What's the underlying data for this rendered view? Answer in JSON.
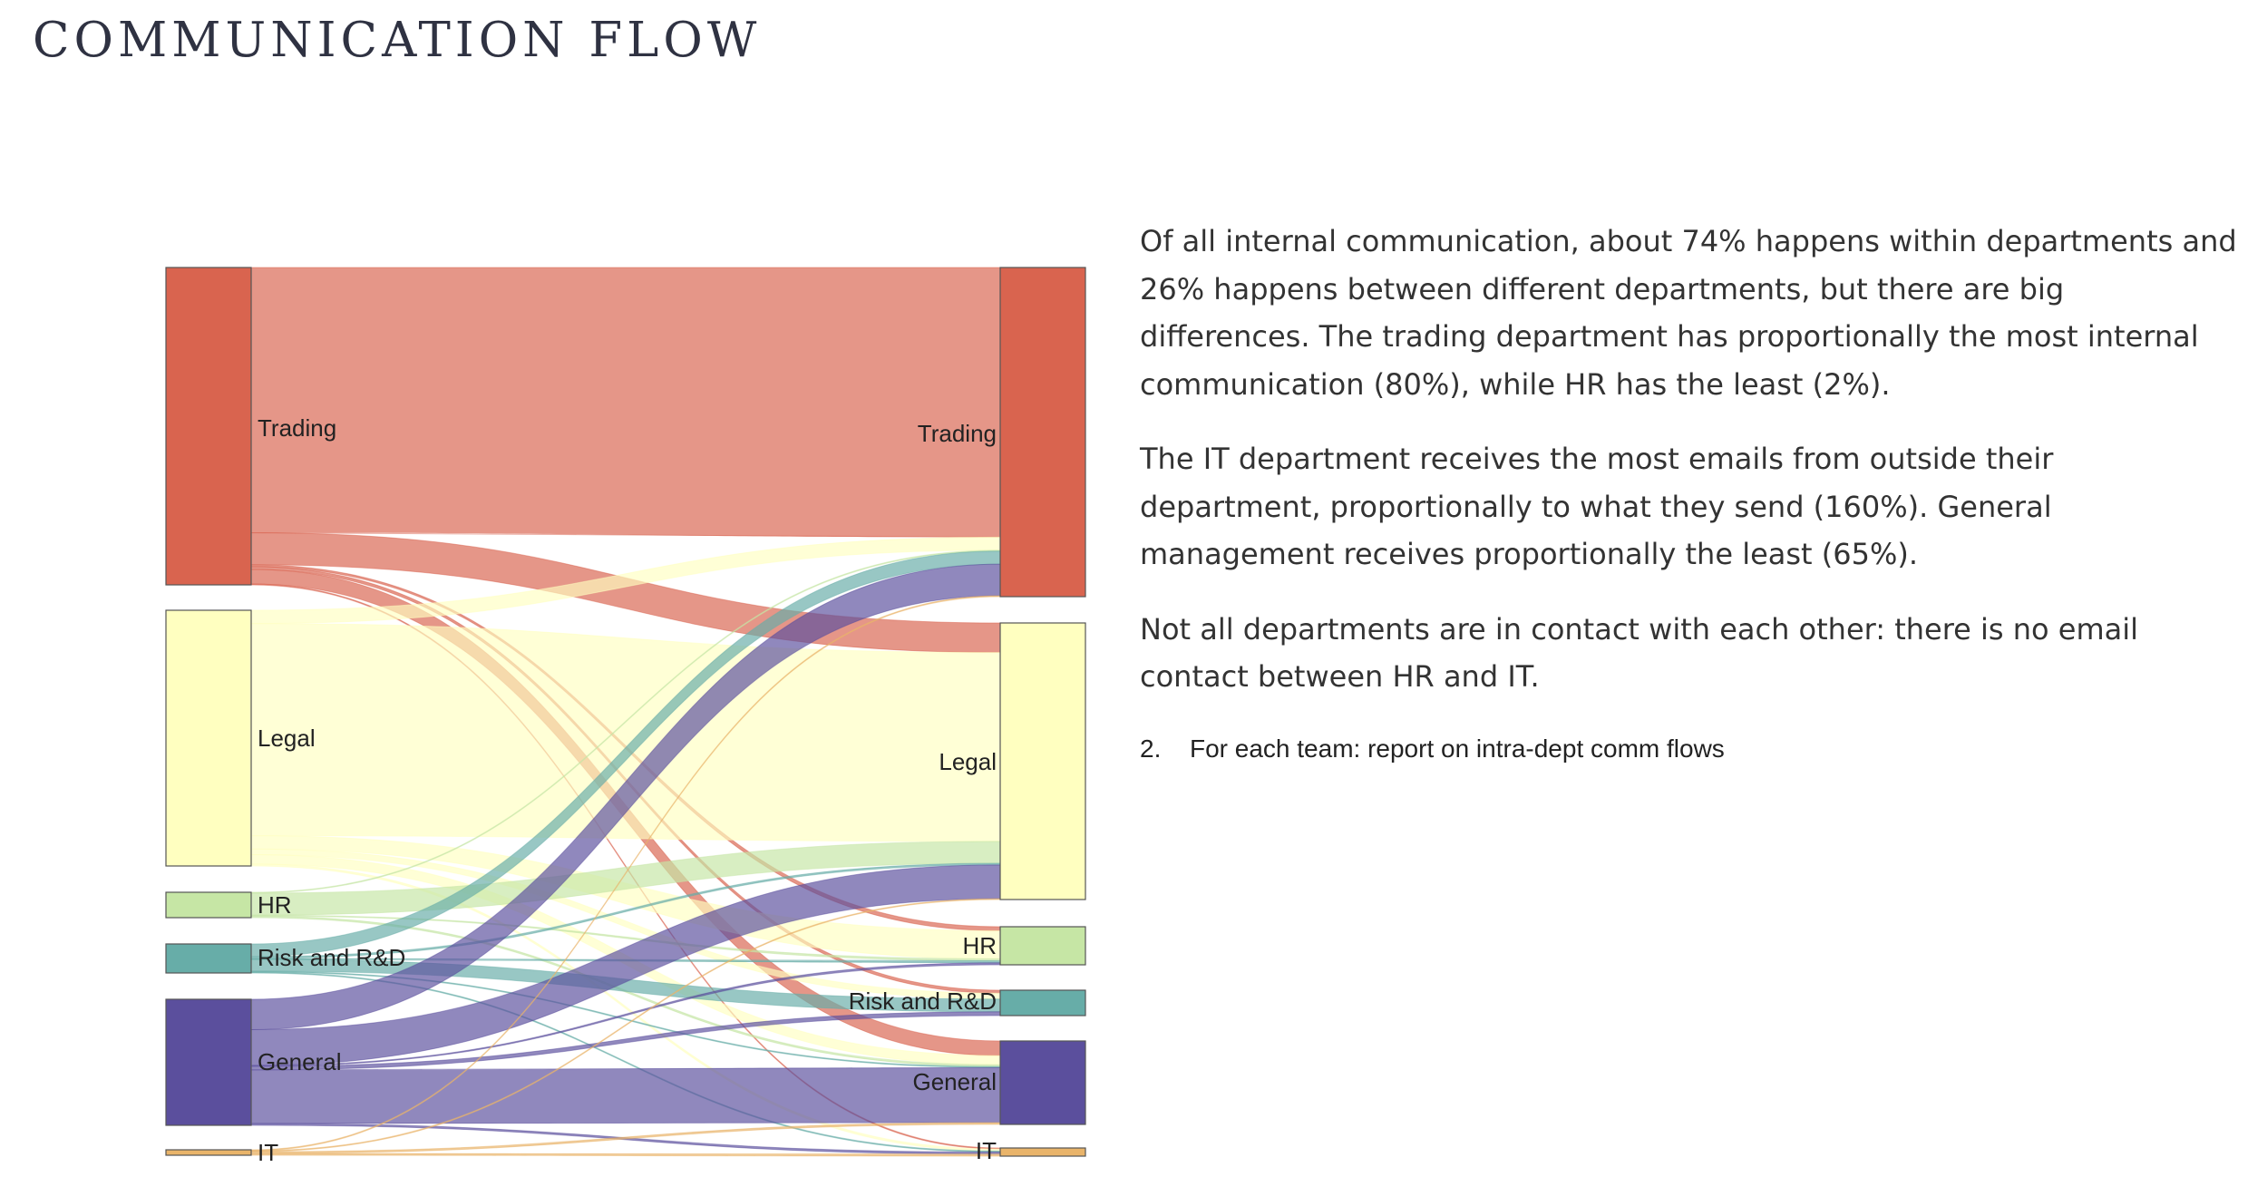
{
  "title": "COMMUNICATION FLOW",
  "sankey": {
    "sources": [
      "Trading",
      "Legal",
      "HR",
      "Risk and R&D",
      "General",
      "IT"
    ],
    "targets": [
      "Trading",
      "Legal",
      "HR",
      "Risk and R&D",
      "General",
      "IT"
    ],
    "colors": {
      "Trading": "#d9644f",
      "Legal": "#ffffc0",
      "HR": "#c6e6a5",
      "Risk and R&D": "#67ada8",
      "General": "#5b4f9d",
      "IT": "#e9b46a"
    }
  },
  "description": {
    "p1": "Of all internal communication, about 74% happens within departments and 26% happens between different departments, but there are big differences. The trading department has proportionally the most internal communication (80%), while HR has the least (2%).",
    "p2": "The IT department receives the most emails from outside their department, proportionally to what they send (160%). General management receives proportionally the least (65%).",
    "p3": "Not all departments are in contact with each other: there is no email contact between HR and IT."
  },
  "list": {
    "number": "2.",
    "text": "For each team: report on intra-dept comm flows"
  }
}
